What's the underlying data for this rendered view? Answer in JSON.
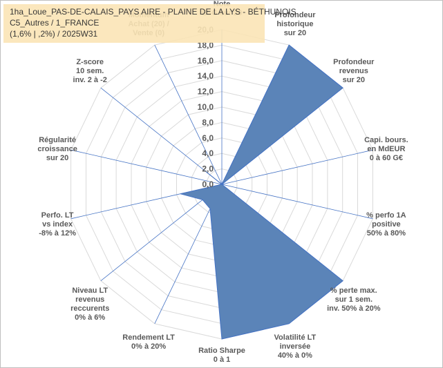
{
  "header": {
    "line1": "1ha_Loue_PAS-DE-CALAIS_PAYS AIRE - PLAINE DE LA LYS - BÉTHUNOIS",
    "line2": "C5_Autres / 1_FRANCE",
    "line3": "(1,6% | ,2%) / 2025W31"
  },
  "chart_data": {
    "type": "radar",
    "rmin": 0,
    "rmax": 20,
    "tick_labels": [
      "0,0",
      "2,0",
      "4,0",
      "6,0",
      "8,0",
      "10,0",
      "12,0",
      "14,0",
      "16,0",
      "18,0",
      "20,0"
    ],
    "axes": [
      {
        "lines": [
          "Note",
          "ESG sur 20"
        ]
      },
      {
        "lines": [
          "Profondeur",
          "historique",
          "sur 20"
        ]
      },
      {
        "lines": [
          "Profondeur",
          "revenus",
          "sur 20"
        ]
      },
      {
        "lines": [
          "Capi. bours.",
          "en MdEUR",
          "0 à 60 G€"
        ]
      },
      {
        "lines": [
          "% perfo 1A",
          "positive",
          "50% à 80%"
        ]
      },
      {
        "lines": [
          "% perte max.",
          "sur 1 sem.",
          "inv. 50% à 20%"
        ]
      },
      {
        "lines": [
          "Volatilité LT",
          "inversée",
          "40% à 0%"
        ]
      },
      {
        "lines": [
          "Ratio Sharpe",
          "0 à 1"
        ]
      },
      {
        "lines": [
          "Rendement LT",
          "0% à 20%"
        ]
      },
      {
        "lines": [
          "Niveau LT",
          "revenus",
          "reccurents",
          "0% à 6%"
        ]
      },
      {
        "lines": [
          "Perfo. LT",
          "vs index",
          "-8% à 12%"
        ]
      },
      {
        "lines": [
          "Régularité",
          "croissance",
          "sur 20"
        ]
      },
      {
        "lines": [
          "Z-score",
          "10 sem.",
          "inv. 2 à -2"
        ]
      },
      {
        "lines": [
          "Momentum",
          "Achat (20) /",
          "Vente (0)"
        ]
      }
    ],
    "series": [
      {
        "values": [
          0,
          20,
          20,
          0,
          0,
          20,
          20,
          20,
          3.5,
          3.2,
          5.5,
          0,
          2.6,
          0
        ],
        "color": "#5b84b8",
        "stroke": "#4472c4"
      }
    ],
    "grid": true
  }
}
